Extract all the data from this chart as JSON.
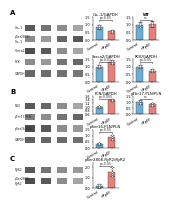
{
  "panels": {
    "a_left_top": {
      "title": "Ca₁.1/GAPDH",
      "ylim": [
        0,
        1.5
      ],
      "yticks": [
        0.0,
        0.5,
        1.0,
        1.5
      ],
      "control": {
        "mean": 0.85,
        "err": 0.12
      },
      "hfpef": {
        "mean": 0.55,
        "err": 0.1
      },
      "pval": "p<0.05",
      "dots_ctrl": [
        0.75,
        0.85,
        0.95,
        0.88,
        0.8
      ],
      "dots_hf": [
        0.45,
        0.55,
        0.65,
        0.5,
        0.58
      ]
    },
    "a_right_top": {
      "title": "WT",
      "title_bold": true,
      "ylim": [
        0,
        1.5
      ],
      "yticks": [
        0.0,
        0.5,
        1.0,
        1.5
      ],
      "control": {
        "mean": 1.0,
        "err": 0.15
      },
      "hfpef": {
        "mean": 1.05,
        "err": 0.18
      },
      "pval": "ns",
      "dots_ctrl": [
        0.85,
        1.0,
        1.1,
        0.95,
        1.05
      ],
      "dots_hf": [
        0.9,
        1.05,
        1.15,
        1.0,
        1.1
      ]
    },
    "a_left_bot": {
      "title": "Serca2/GAPDH",
      "ylim": [
        0,
        1.5
      ],
      "yticks": [
        0.0,
        0.5,
        1.0,
        1.5
      ],
      "control": {
        "mean": 1.0,
        "err": 0.1
      },
      "hfpef": {
        "mean": 1.3,
        "err": 0.14
      },
      "pval": "p<0.01",
      "dots_ctrl": [
        0.9,
        1.0,
        1.08,
        0.95,
        1.02
      ],
      "dots_hf": [
        1.18,
        1.3,
        1.42,
        1.25,
        1.35
      ]
    },
    "a_right_bot": {
      "title": "RCK/GAPDH",
      "ylim": [
        0,
        1.5
      ],
      "yticks": [
        0.0,
        0.5,
        1.0,
        1.5
      ],
      "control": {
        "mean": 1.0,
        "err": 0.12
      },
      "hfpef": {
        "mean": 0.72,
        "err": 0.1
      },
      "pval": "p<0.05",
      "dots_ctrl": [
        0.88,
        1.0,
        1.1,
        0.95,
        1.02
      ],
      "dots_hf": [
        0.62,
        0.72,
        0.82,
        0.68,
        0.75
      ]
    },
    "b_left": {
      "title": "PLN/GAPDH",
      "ylim": [
        0.6,
        1.6
      ],
      "yticks": [
        0.6,
        0.8,
        1.0,
        1.2,
        1.4,
        1.6
      ],
      "control": {
        "mean": 1.0,
        "err": 0.06
      },
      "hfpef": {
        "mean": 1.38,
        "err": 0.08
      },
      "pval": "p<0.005",
      "dots_ctrl": [
        0.94,
        1.0,
        1.06,
        0.97,
        1.03
      ],
      "dots_hf": [
        1.3,
        1.38,
        1.46,
        1.33,
        1.4
      ]
    },
    "b_right": {
      "title": "pThr17-PLN/PLN",
      "ylim": [
        0,
        1.5
      ],
      "yticks": [
        0.0,
        0.5,
        1.0,
        1.5
      ],
      "control": {
        "mean": 1.0,
        "err": 0.15
      },
      "hfpef": {
        "mean": 0.82,
        "err": 0.13
      },
      "pval": "ns",
      "dots_ctrl": [
        0.85,
        1.0,
        1.12,
        0.92,
        1.05
      ],
      "dots_hf": [
        0.7,
        0.82,
        0.95,
        0.76,
        0.88
      ]
    },
    "b_bot": {
      "title": "pSer16-PLN/PLN",
      "ylim": [
        0,
        1.5
      ],
      "yticks": [
        0.0,
        0.5,
        1.0,
        1.5
      ],
      "control": {
        "mean": 0.32,
        "err": 0.1
      },
      "hfpef": {
        "mean": 0.85,
        "err": 0.18
      },
      "pval": "p<0.05",
      "dots_ctrl": [
        0.22,
        0.32,
        0.42,
        0.28,
        0.36
      ],
      "dots_hf": [
        0.67,
        0.85,
        1.03,
        0.75,
        0.92
      ]
    },
    "c_bar": {
      "title": "pSer2808-RyR2/RyR2",
      "ylim": [
        0,
        2.5
      ],
      "yticks": [
        0.0,
        1.0,
        2.0
      ],
      "control": {
        "mean": 0.2,
        "err": 0.2
      },
      "hfpef": {
        "mean": 1.55,
        "err": 0.45
      },
      "pval": "p<0.05",
      "dots_ctrl": [
        0.05,
        0.2,
        0.35,
        0.1,
        0.28
      ],
      "dots_hf": [
        1.1,
        1.55,
        2.0,
        1.3,
        1.8
      ]
    }
  },
  "blots": {
    "a": {
      "n_lanes": 4,
      "rows": [
        {
          "label": "Ca₁.1",
          "shades": [
            0.35,
            0.45,
            0.55,
            0.65
          ]
        },
        {
          "label": "pSer2808/\nCa₁.1",
          "shades": [
            0.55,
            0.6,
            0.4,
            0.35
          ]
        },
        {
          "label": "Serca2",
          "shades": [
            0.3,
            0.35,
            0.55,
            0.65
          ]
        },
        {
          "label": "RCK",
          "shades": [
            0.55,
            0.6,
            0.45,
            0.4
          ]
        },
        {
          "label": "GAPDH",
          "shades": [
            0.4,
            0.42,
            0.44,
            0.46
          ]
        }
      ]
    },
    "b": {
      "n_lanes": 4,
      "rows": [
        {
          "label": "PLN",
          "shades": [
            0.35,
            0.4,
            0.55,
            0.65
          ]
        },
        {
          "label": "pThr17-PLN",
          "shades": [
            0.5,
            0.55,
            0.45,
            0.4
          ]
        },
        {
          "label": "pSer16-PLN",
          "shades": [
            0.3,
            0.35,
            0.55,
            0.6
          ]
        },
        {
          "label": "GAPDH",
          "shades": [
            0.38,
            0.4,
            0.42,
            0.44
          ]
        }
      ]
    },
    "c": {
      "n_lanes": 4,
      "rows": [
        {
          "label": "RyR2",
          "shades": [
            0.35,
            0.45,
            0.55,
            0.6
          ]
        },
        {
          "label": "pSer2808\nRyR2",
          "shades": [
            0.3,
            0.35,
            0.55,
            0.65
          ]
        }
      ]
    }
  },
  "colors": {
    "control": "#6aaed6",
    "hfpef": "#e87f79",
    "blot_bg": "#f5f5f5",
    "background": "#ffffff",
    "text": "#222222"
  },
  "xlabel_control": "Control",
  "xlabel_hfpef": "HFpEF"
}
